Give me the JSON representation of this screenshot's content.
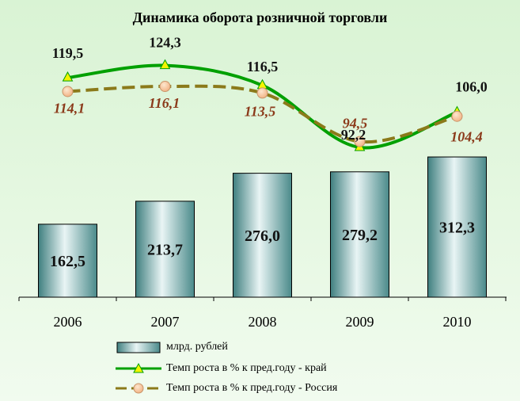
{
  "chart_data": {
    "type": "bar",
    "title": "Динамика оборота розничной торговли",
    "categories": [
      "2006",
      "2007",
      "2008",
      "2009",
      "2010"
    ],
    "series": [
      {
        "name": "млрд. рублей",
        "type": "bar",
        "values": [
          162.5,
          213.7,
          276.0,
          279.2,
          312.3
        ],
        "labels": [
          "162,5",
          "213,7",
          "276,0",
          "279,2",
          "312,3"
        ]
      },
      {
        "name": "Темп роста в % к пред.году - край",
        "type": "line",
        "values": [
          119.5,
          124.3,
          116.5,
          92.2,
          106.0
        ],
        "labels": [
          "119,5",
          "124,3",
          "116,5",
          "92,2",
          "106,0"
        ]
      },
      {
        "name": "Темп роста в % к пред.году - Россия",
        "type": "line",
        "values": [
          114.1,
          116.1,
          113.5,
          94.5,
          104.4
        ],
        "labels": [
          "114,1",
          "116,1",
          "113,5",
          "94,5",
          "104,4"
        ]
      }
    ],
    "grid": false,
    "legend_position": "bottom",
    "colors": {
      "bar": "#7fb4b4",
      "kray": "#00a000",
      "russia": "#8b7a1a",
      "russia_label": "#8b3a1a"
    }
  }
}
